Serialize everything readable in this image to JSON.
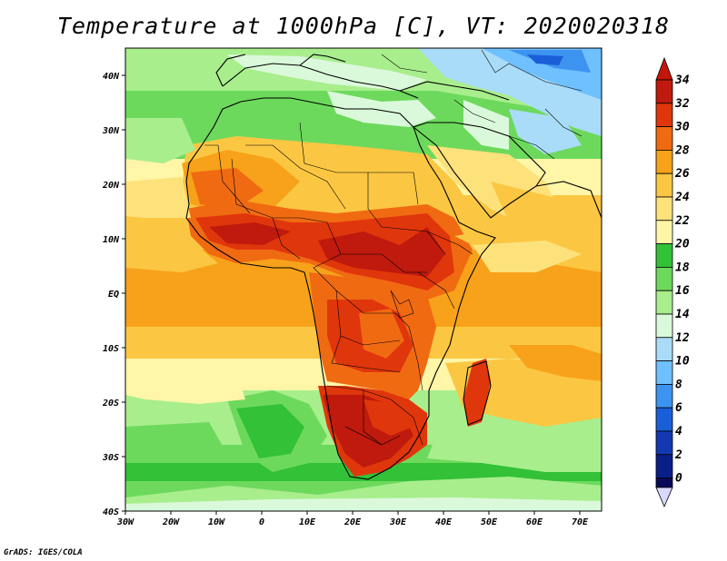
{
  "title": "Temperature at 1000hPa [C], VT: 2020020318",
  "credit": "GrADS: IGES/COLA",
  "map": {
    "lat_labels": [
      "40N",
      "30N",
      "20N",
      "10N",
      "EQ",
      "10S",
      "20S",
      "30S",
      "40S"
    ],
    "lon_labels": [
      "30W",
      "20W",
      "10W",
      "0",
      "10E",
      "20E",
      "30E",
      "40E",
      "50E",
      "60E",
      "70E"
    ],
    "lat_range": [
      -40,
      45
    ],
    "lon_range": [
      -30,
      75
    ],
    "variable": "Temperature at 1000hPa",
    "units": "C"
  },
  "colorbar": {
    "levels": [
      "34",
      "32",
      "30",
      "28",
      "26",
      "24",
      "22",
      "20",
      "18",
      "16",
      "14",
      "12",
      "10",
      "8",
      "6",
      "4",
      "2",
      "0"
    ],
    "colors": [
      "#bf1a0d",
      "#e0360c",
      "#f06a12",
      "#f7a21a",
      "#fbc743",
      "#fde27c",
      "#fff6a8",
      "#32c137",
      "#6dd95c",
      "#a8ee8d",
      "#daf9da",
      "#a9dcf8",
      "#6fc0ff",
      "#3d93f0",
      "#1a5fd8",
      "#1339b2",
      "#0a1e8a",
      "#0a0a5a"
    ],
    "min_color": "#d9d9ff",
    "max_color": "#c41608"
  },
  "legend_colors": {
    "ocean_warm": "#f7a21a",
    "ocean_mild": "#fbc743",
    "ocean_pale": "#fff6a8",
    "cool_green": "#6dd95c",
    "cold_blue": "#6fc0ff",
    "hot": "#e0360c",
    "hottest": "#bf1a0d"
  }
}
